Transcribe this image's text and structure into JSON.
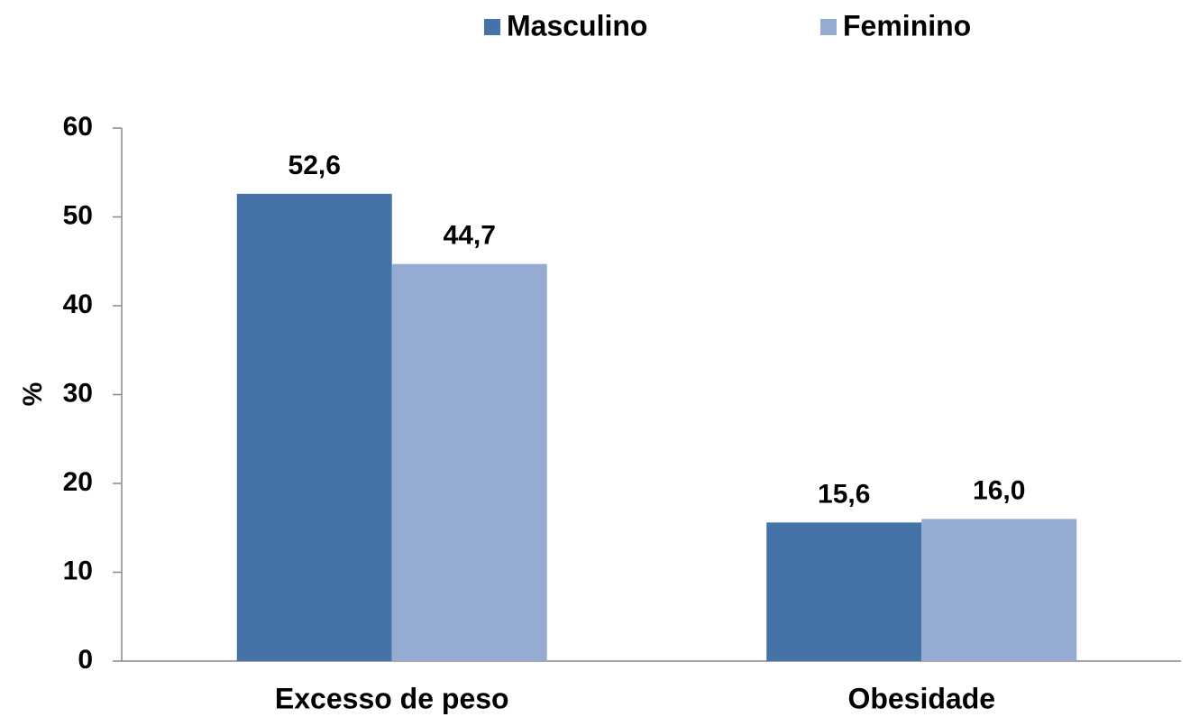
{
  "chart_data": {
    "type": "bar",
    "y_label": "%",
    "categories": [
      "Excesso de peso",
      "Obesidade"
    ],
    "series": [
      {
        "name": "Masculino",
        "color": "#4573a7",
        "values": [
          52.6,
          15.6
        ],
        "value_labels": [
          "52,6",
          "15,6"
        ]
      },
      {
        "name": "Feminino",
        "color": "#96abd2",
        "values": [
          44.7,
          16.0
        ],
        "value_labels": [
          "44,7",
          "16,0"
        ]
      }
    ],
    "ylim": [
      0,
      60
    ],
    "yticks": [
      0,
      10,
      20,
      30,
      40,
      50,
      60
    ],
    "grid": false,
    "legend": "top"
  }
}
